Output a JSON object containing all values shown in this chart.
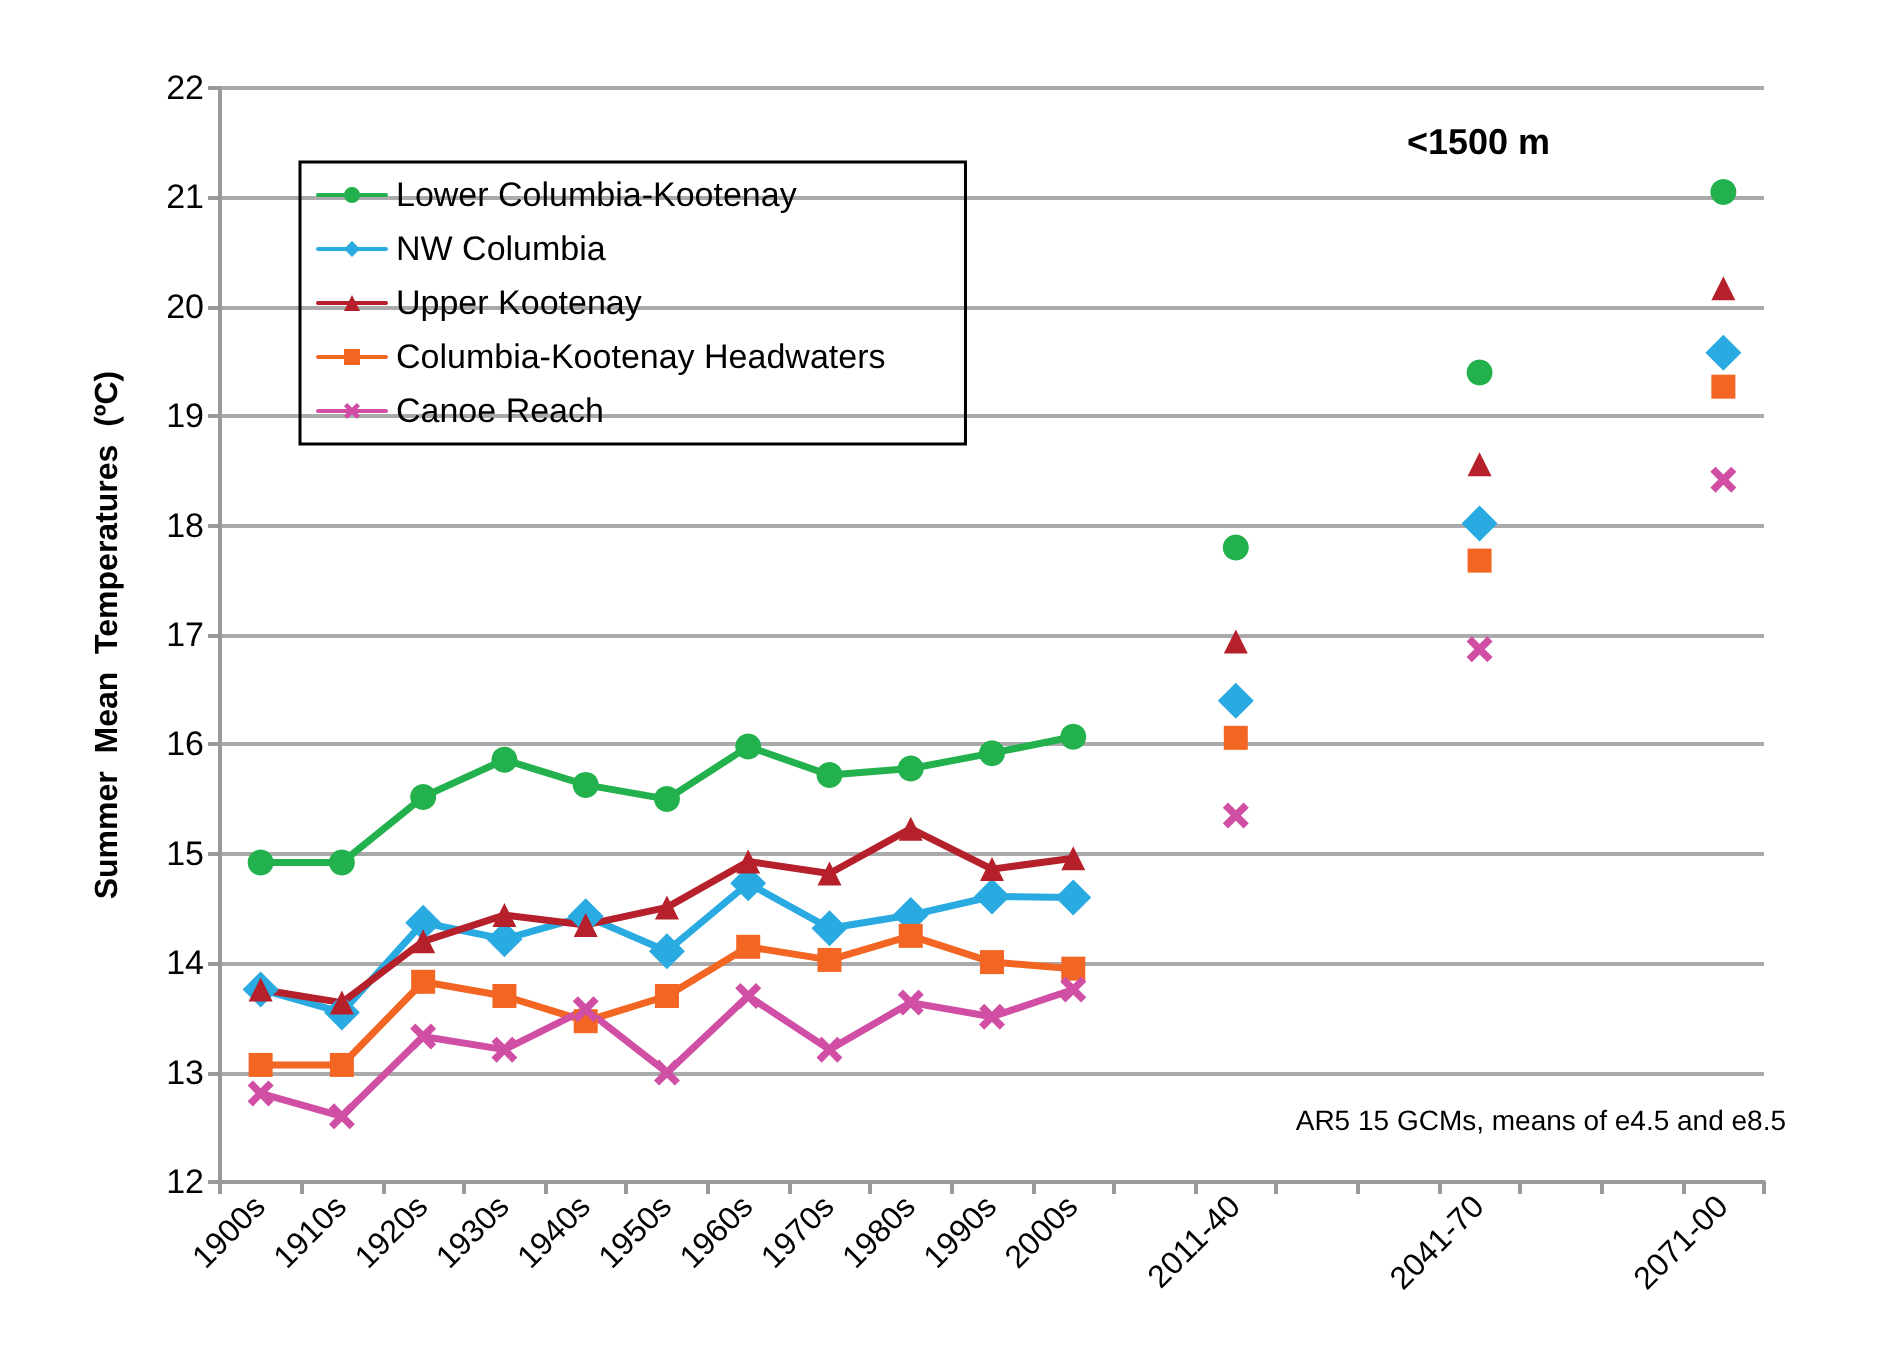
{
  "chart_data": {
    "type": "line",
    "ylabel": "Summer  Mean  Temperatures  (ºC)",
    "categories": [
      "1900s",
      "1910s",
      "1920s",
      "1930s",
      "1940s",
      "1950s",
      "1960s",
      "1970s",
      "1980s",
      "1990s",
      "2000s",
      null,
      "2011-40",
      null,
      null,
      "2041-70",
      null,
      null,
      "2071-00"
    ],
    "series": [
      {
        "name": "Lower Columbia-Kootenay",
        "color": "#22b14c",
        "marker": "circle",
        "values": [
          14.92,
          14.92,
          15.52,
          15.86,
          15.63,
          15.5,
          15.98,
          15.72,
          15.78,
          15.92,
          16.07,
          null,
          17.8,
          null,
          null,
          19.4,
          null,
          null,
          21.05
        ]
      },
      {
        "name": "NW Columbia",
        "color": "#29abe2",
        "marker": "diamond",
        "values": [
          13.76,
          13.55,
          14.37,
          14.22,
          14.43,
          14.11,
          14.73,
          14.32,
          14.44,
          14.61,
          14.6,
          null,
          16.4,
          null,
          null,
          18.02,
          null,
          null,
          19.58
        ]
      },
      {
        "name": "Upper Kootenay",
        "color": "#b5202a",
        "marker": "triangle",
        "values": [
          13.76,
          13.64,
          14.2,
          14.44,
          14.35,
          14.51,
          14.93,
          14.82,
          15.23,
          14.86,
          14.96,
          null,
          16.94,
          null,
          null,
          18.56,
          null,
          null,
          20.17
        ]
      },
      {
        "name": "Columbia-Kootenay Headwaters",
        "color": "#f26522",
        "marker": "square",
        "values": [
          13.07,
          13.07,
          13.83,
          13.7,
          13.47,
          13.7,
          14.15,
          14.03,
          14.25,
          14.01,
          13.95,
          null,
          16.06,
          null,
          null,
          17.68,
          null,
          null,
          19.27
        ]
      },
      {
        "name": "Canoe Reach",
        "color": "#d04fa5",
        "marker": "cross",
        "values": [
          12.81,
          12.6,
          13.33,
          13.21,
          13.58,
          13,
          13.7,
          13.21,
          13.64,
          13.51,
          13.76,
          null,
          15.35,
          null,
          null,
          16.87,
          null,
          null,
          18.42
        ]
      }
    ],
    "ylim": [
      12,
      22
    ],
    "yticks": [
      12,
      13,
      14,
      15,
      16,
      17,
      18,
      19,
      20,
      21,
      22
    ],
    "grid": "y",
    "legend": "top left",
    "annotations": [
      "<1500 m",
      "AR5 15 GCMs, means of e4.5 and e8.5"
    ]
  }
}
